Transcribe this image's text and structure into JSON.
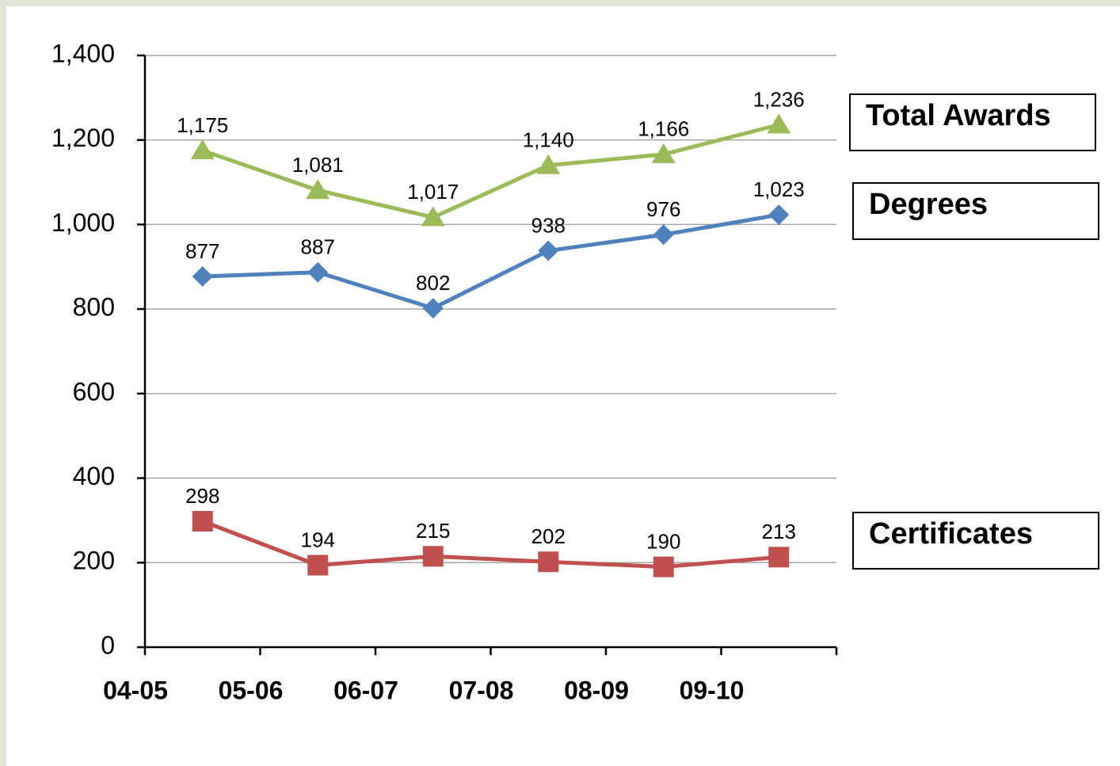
{
  "chart_data": {
    "type": "line",
    "categories": [
      "04-05",
      "05-06",
      "06-07",
      "07-08",
      "08-09",
      "09-10"
    ],
    "series": [
      {
        "name": "Total Awards",
        "color": "#9bbb59",
        "marker": "triangle",
        "values": [
          1175,
          1081,
          1017,
          1140,
          1166,
          1236
        ],
        "value_labels": [
          "1,175",
          "1,081",
          "1,017",
          "1,140",
          "1,166",
          "1,236"
        ]
      },
      {
        "name": "Degrees",
        "color": "#4f81bd",
        "marker": "diamond",
        "values": [
          877,
          887,
          802,
          938,
          976,
          1023
        ],
        "value_labels": [
          "877",
          "887",
          "802",
          "938",
          "976",
          "1,023"
        ]
      },
      {
        "name": "Certificates",
        "color": "#c0504d",
        "marker": "square",
        "values": [
          298,
          194,
          215,
          202,
          190,
          213
        ]
      }
    ],
    "ylim": [
      0,
      1400
    ],
    "yticks": [
      0,
      200,
      400,
      600,
      800,
      {
        "value": 1000,
        "label": "1,000"
      },
      {
        "value": 1200,
        "label": "1,200"
      },
      {
        "value": 1400,
        "label": "1,400"
      }
    ],
    "grid": true
  }
}
